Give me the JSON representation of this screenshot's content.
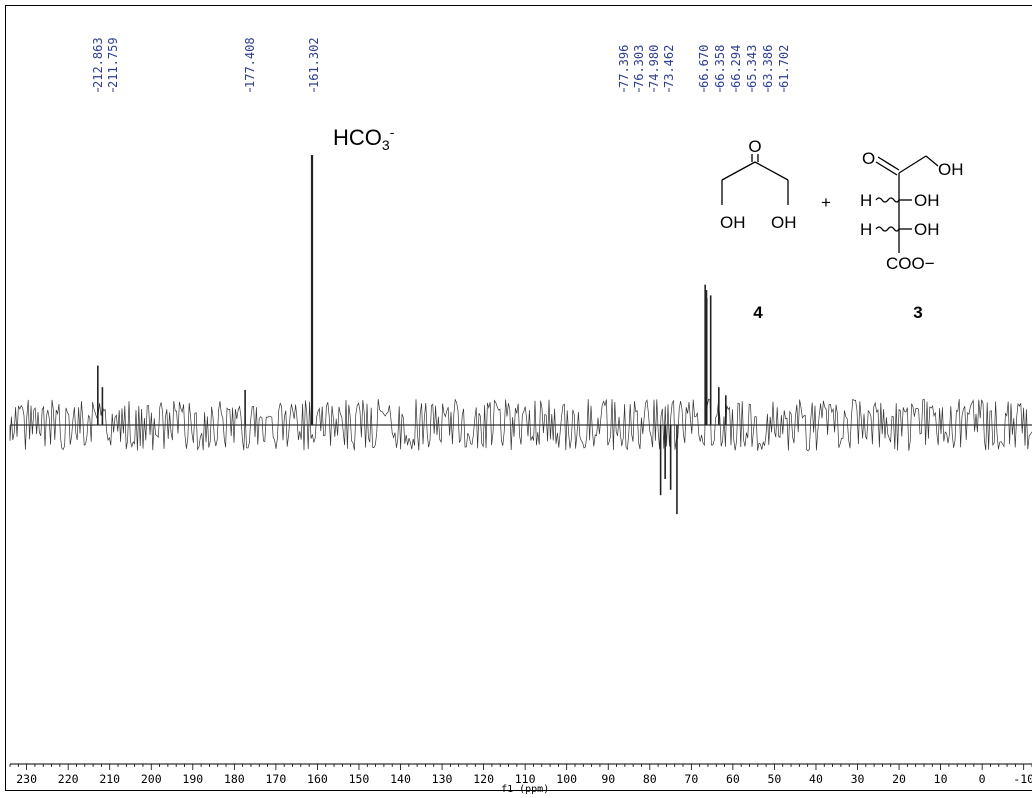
{
  "chart_data": {
    "type": "line",
    "xlabel": "f1 (ppm)",
    "x_ticks": [
      230,
      220,
      210,
      200,
      190,
      180,
      170,
      160,
      150,
      140,
      130,
      120,
      110,
      100,
      90,
      80,
      70,
      60,
      50,
      40,
      30,
      20,
      10,
      0,
      -10
    ],
    "xlim": [
      234,
      -12
    ],
    "x_reversed": true,
    "baseline_noise": true,
    "peak_labels": [
      "212.863",
      "211.759",
      "177.408",
      "161.302",
      "77.396",
      "76.303",
      "74.980",
      "73.462",
      "66.670",
      "66.358",
      "66.294",
      "65.343",
      "63.386",
      "61.702"
    ],
    "peaks": [
      {
        "ppm": 212.863,
        "intensity": 0.22
      },
      {
        "ppm": 211.759,
        "intensity": 0.14
      },
      {
        "ppm": 177.408,
        "intensity": 0.13
      },
      {
        "ppm": 161.302,
        "intensity": 1.0
      },
      {
        "ppm": 77.396,
        "intensity": -0.26
      },
      {
        "ppm": 76.303,
        "intensity": -0.2
      },
      {
        "ppm": 74.98,
        "intensity": -0.24
      },
      {
        "ppm": 73.462,
        "intensity": -0.33
      },
      {
        "ppm": 66.67,
        "intensity": 0.52
      },
      {
        "ppm": 66.358,
        "intensity": 0.5
      },
      {
        "ppm": 66.294,
        "intensity": 0.47
      },
      {
        "ppm": 65.343,
        "intensity": 0.48
      },
      {
        "ppm": 63.386,
        "intensity": 0.14
      },
      {
        "ppm": 61.702,
        "intensity": 0.11
      }
    ],
    "line_color": "#333333",
    "label_color": "#2f3f8f"
  },
  "annotations": {
    "hco3_main": "HCO",
    "hco3_sub": "3",
    "hco3_sup": "-",
    "plus": "+",
    "compound4_number": "4",
    "compound3_number": "3",
    "c4_o": "O",
    "c4_oh_left": "OH",
    "c4_oh_right": "OH",
    "c3_o": "O",
    "c3_oh_top": "OH",
    "c3_h1": "H",
    "c3_oh1": "OH",
    "c3_h2": "H",
    "c3_oh2": "OH",
    "c3_coo": "COO−"
  }
}
